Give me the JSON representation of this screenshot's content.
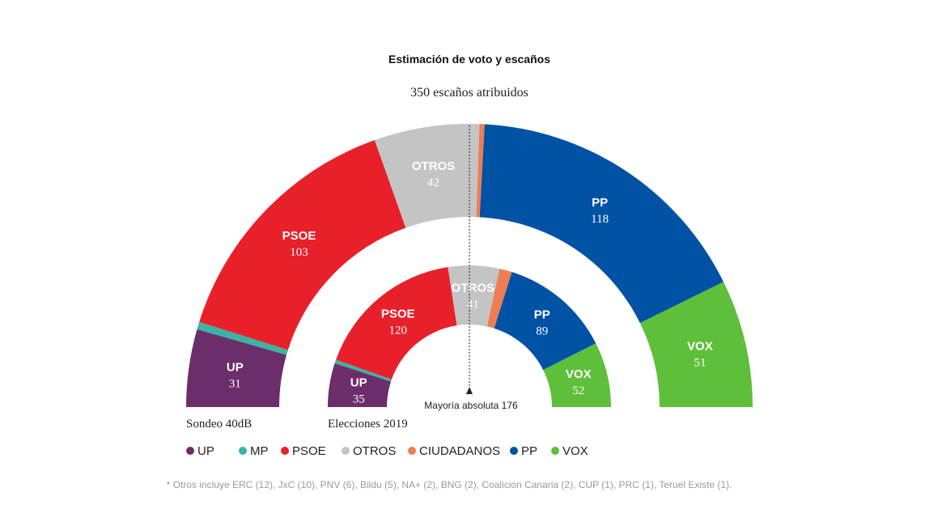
{
  "chart_data": {
    "type": "parliament-semicircle",
    "title": "Estimación de voto y escaños",
    "subtitle": "350 escaños atribuidos",
    "total_seats": 350,
    "majority": {
      "label": "Mayoría absoluta 176",
      "seats": 176
    },
    "series": [
      {
        "name": "Sondeo 40dB",
        "ring": "outer",
        "segments": [
          {
            "party": "UP",
            "seats": 31,
            "color": "#6c2d6b",
            "label": "UP",
            "value_label": "31"
          },
          {
            "party": "MP",
            "seats": 3,
            "color": "#3bb3a4"
          },
          {
            "party": "PSOE",
            "seats": 103,
            "color": "#e8202a",
            "label": "PSOE",
            "value_label": "103"
          },
          {
            "party": "OTROS",
            "seats": 42,
            "color": "#c4c4c4",
            "label": "OTROS",
            "value_label": "42"
          },
          {
            "party": "CIUDADANOS",
            "seats": 2,
            "color": "#ee7d52"
          },
          {
            "party": "PP",
            "seats": 118,
            "color": "#0052a5",
            "label": "PP",
            "value_label": "118"
          },
          {
            "party": "VOX",
            "seats": 51,
            "color": "#5ebf3a",
            "label": "VOX",
            "value_label": "51"
          }
        ]
      },
      {
        "name": "Elecciones 2019",
        "ring": "inner",
        "segments": [
          {
            "party": "UP",
            "seats": 35,
            "color": "#6c2d6b",
            "label": "UP",
            "value_label": "35"
          },
          {
            "party": "MP",
            "seats": 3,
            "color": "#3bb3a4"
          },
          {
            "party": "PSOE",
            "seats": 120,
            "color": "#e8202a",
            "label": "PSOE",
            "value_label": "120"
          },
          {
            "party": "OTROS",
            "seats": 41,
            "color": "#c4c4c4",
            "label": "OTROS",
            "value_label": "41"
          },
          {
            "party": "CIUDADANOS",
            "seats": 10,
            "color": "#ee7d52"
          },
          {
            "party": "PP",
            "seats": 89,
            "color": "#0052a5",
            "label": "PP",
            "value_label": "89"
          },
          {
            "party": "VOX",
            "seats": 52,
            "color": "#5ebf3a",
            "label": "VOX",
            "value_label": "52"
          }
        ]
      }
    ],
    "legend": [
      {
        "label": "UP",
        "color": "#6c2d6b"
      },
      {
        "label": "MP",
        "color": "#3bb3a4"
      },
      {
        "label": "PSOE",
        "color": "#e8202a"
      },
      {
        "label": "OTROS",
        "color": "#c4c4c4"
      },
      {
        "label": "CIUDADANOS",
        "color": "#ee7d52"
      },
      {
        "label": "PP",
        "color": "#0052a5"
      },
      {
        "label": "VOX",
        "color": "#5ebf3a"
      }
    ],
    "footnote": "* Otros incluye ERC (12), JxC (10), PNV (6), Bildu (5), NA+ (2), BNG (2), Coalición Canaria (2), CUP (1), PRC (1), Teruel Existe (1)."
  }
}
